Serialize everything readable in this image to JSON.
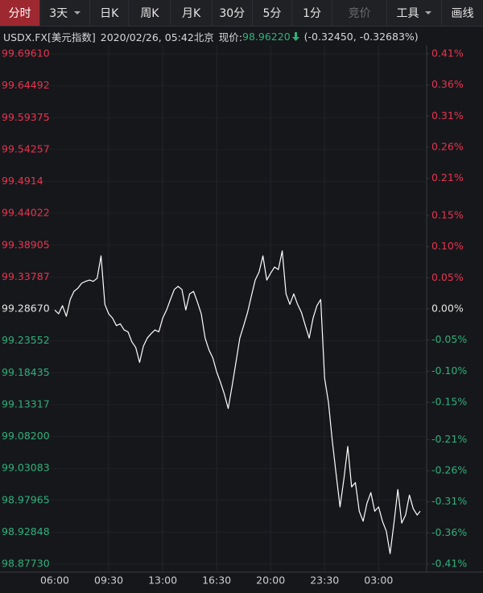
{
  "toolbar": {
    "tabs": [
      "分时",
      "3天",
      "日K",
      "周K",
      "月K",
      "30分",
      "5分",
      "1分",
      "竞价",
      "工具",
      "画线"
    ]
  },
  "info": {
    "symbol": "USDX.FX[美元指数]",
    "datetime": "2020/02/26, 05:42北京",
    "price_label": "现价:",
    "price": "98.96220",
    "change": "(-0.32450, -0.32683%)"
  },
  "chart_data": {
    "type": "line",
    "x": [
      "06:00",
      "06:15",
      "06:30",
      "06:45",
      "07:00",
      "07:15",
      "07:30",
      "07:45",
      "08:00",
      "08:15",
      "08:30",
      "08:45",
      "09:00",
      "09:15",
      "09:30",
      "09:45",
      "10:00",
      "10:15",
      "10:30",
      "10:45",
      "11:00",
      "11:15",
      "11:30",
      "11:45",
      "12:00",
      "12:15",
      "12:30",
      "12:45",
      "13:00",
      "13:15",
      "13:30",
      "13:45",
      "14:00",
      "14:15",
      "14:30",
      "14:45",
      "15:00",
      "15:15",
      "15:30",
      "15:45",
      "16:00",
      "16:15",
      "16:30",
      "16:45",
      "17:00",
      "17:15",
      "17:30",
      "17:45",
      "18:00",
      "18:15",
      "18:30",
      "18:45",
      "19:00",
      "19:15",
      "19:30",
      "19:45",
      "20:00",
      "20:15",
      "20:30",
      "20:45",
      "21:00",
      "21:15",
      "21:30",
      "21:45",
      "22:00",
      "22:15",
      "22:30",
      "22:45",
      "23:00",
      "23:15",
      "23:30",
      "23:45",
      "00:00",
      "00:15",
      "00:30",
      "00:45",
      "01:00",
      "01:15",
      "01:30",
      "01:45",
      "02:00",
      "02:15",
      "02:30",
      "02:45",
      "03:00",
      "03:15",
      "03:30",
      "03:45",
      "04:00",
      "04:15",
      "04:30",
      "04:45",
      "05:00",
      "05:15",
      "05:30",
      "05:42"
    ],
    "series": [
      {
        "color": "#ffffff",
        "values": [
          99.285,
          99.279,
          99.292,
          99.275,
          99.302,
          99.315,
          99.32,
          99.328,
          99.331,
          99.333,
          99.331,
          99.336,
          99.372,
          99.294,
          99.279,
          99.272,
          99.26,
          99.263,
          99.253,
          99.25,
          99.234,
          99.225,
          99.201,
          99.227,
          99.24,
          99.247,
          99.253,
          99.25,
          99.272,
          99.285,
          99.302,
          99.318,
          99.323,
          99.318,
          99.285,
          99.311,
          99.315,
          99.298,
          99.279,
          99.24,
          99.221,
          99.208,
          99.186,
          99.169,
          99.15,
          99.127,
          99.163,
          99.201,
          99.24,
          99.26,
          99.281,
          99.307,
          99.333,
          99.346,
          99.372,
          99.333,
          99.344,
          99.354,
          99.35,
          99.38,
          99.311,
          99.294,
          99.311,
          99.294,
          99.281,
          99.26,
          99.24,
          99.272,
          99.292,
          99.302,
          99.176,
          99.137,
          99.075,
          99.021,
          98.969,
          99.014,
          99.066,
          99.001,
          99.008,
          98.962,
          98.946,
          98.975,
          98.992,
          98.962,
          98.969,
          98.946,
          98.93,
          98.894,
          98.943,
          98.997,
          98.943,
          98.956,
          98.988,
          98.966,
          98.956,
          98.9622
        ]
      }
    ],
    "xticks": [
      "06:00",
      "09:30",
      "13:00",
      "16:30",
      "20:00",
      "23:30",
      "03:00"
    ],
    "ylim": [
      98.8773,
      99.6961
    ],
    "yticks": [
      {
        "value": 99.6961,
        "label": "99.69610"
      },
      99.64492,
      99.59375,
      99.54257,
      99.4914,
      99.44022,
      99.38905,
      99.33787,
      {
        "value": 99.2867,
        "label": "99.28670"
      },
      99.23552,
      99.18435,
      99.13317,
      {
        "value": 99.082,
        "label": "99.08200"
      },
      99.03083,
      98.97965,
      98.92848,
      {
        "value": 98.8773,
        "label": "98.87730"
      }
    ],
    "y2lim": [
      -0.41,
      0.41
    ],
    "y2ticks": [
      {
        "value": 0.41,
        "label": "0.41%"
      },
      {
        "value": 0.36,
        "label": "0.36%"
      },
      {
        "value": 0.31,
        "label": "0.31%"
      },
      {
        "value": 0.26,
        "label": "0.26%"
      },
      {
        "value": 0.21,
        "label": "0.21%"
      },
      {
        "value": 0.15,
        "label": "0.15%"
      },
      {
        "value": 0.1,
        "label": "0.10%"
      },
      {
        "value": 0.05,
        "label": "0.05%"
      },
      {
        "value": 0,
        "label": "0.00%"
      },
      {
        "value": -0.05,
        "label": "-0.05%"
      },
      {
        "value": -0.1,
        "label": "-0.10%"
      },
      {
        "value": -0.15,
        "label": "-0.15%"
      },
      {
        "value": -0.21,
        "label": "-0.21%"
      },
      {
        "value": -0.26,
        "label": "-0.26%"
      },
      {
        "value": -0.31,
        "label": "-0.31%"
      },
      {
        "value": -0.36,
        "label": "-0.36%"
      },
      {
        "value": -0.41,
        "label": "-0.41%"
      }
    ],
    "grid": true,
    "up_color": "#e8344e",
    "down_color": "#2fb07a",
    "flat_color": "#e6e6e6"
  }
}
